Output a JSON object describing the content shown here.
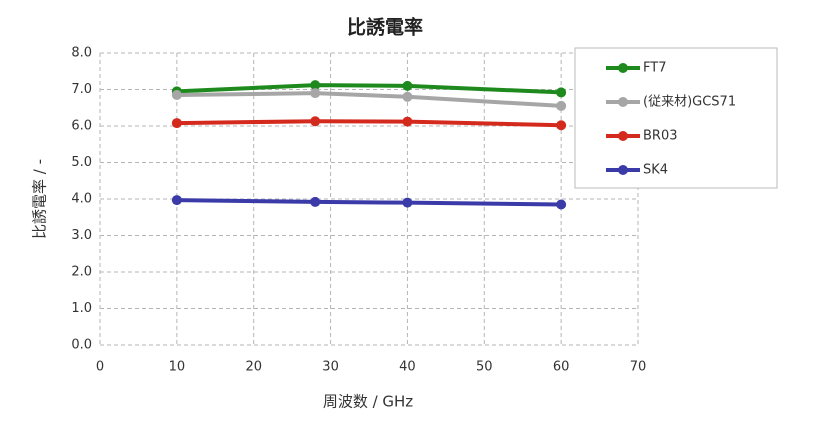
{
  "chart_data": {
    "type": "line",
    "title": "比誘電率",
    "x_label": "周波数 / GHz",
    "y_label": "比誘電率 / -",
    "x": [
      10,
      28,
      40,
      60
    ],
    "series": [
      {
        "name": "FT7",
        "color": "#1e8a1e",
        "values": [
          6.95,
          7.12,
          7.1,
          6.92
        ]
      },
      {
        "name": "(従来材)GCS71",
        "color": "#a6a6a6",
        "values": [
          6.85,
          6.9,
          6.8,
          6.55
        ]
      },
      {
        "name": "BR03",
        "color": "#d42a1e",
        "values": [
          6.08,
          6.13,
          6.12,
          6.02
        ]
      },
      {
        "name": "SK4",
        "color": "#3a3aa8",
        "values": [
          3.97,
          3.92,
          3.9,
          3.85
        ]
      }
    ],
    "xlim": [
      0,
      70
    ],
    "xticks": [
      0,
      10,
      20,
      30,
      40,
      50,
      60,
      70
    ],
    "ylim": [
      0,
      8
    ],
    "yticks": [
      {
        "value": 0,
        "label": "0.0"
      },
      {
        "value": 1,
        "label": "1.0"
      },
      {
        "value": 2,
        "label": "2.0"
      },
      {
        "value": 3,
        "label": "3.0"
      },
      {
        "value": 4,
        "label": "4.0"
      },
      {
        "value": 5,
        "label": "5.0"
      },
      {
        "value": 6,
        "label": "6.0"
      },
      {
        "value": 7,
        "label": "7.0"
      },
      {
        "value": 8,
        "label": "8.0"
      }
    ],
    "grid": true,
    "legend": "upper right"
  }
}
